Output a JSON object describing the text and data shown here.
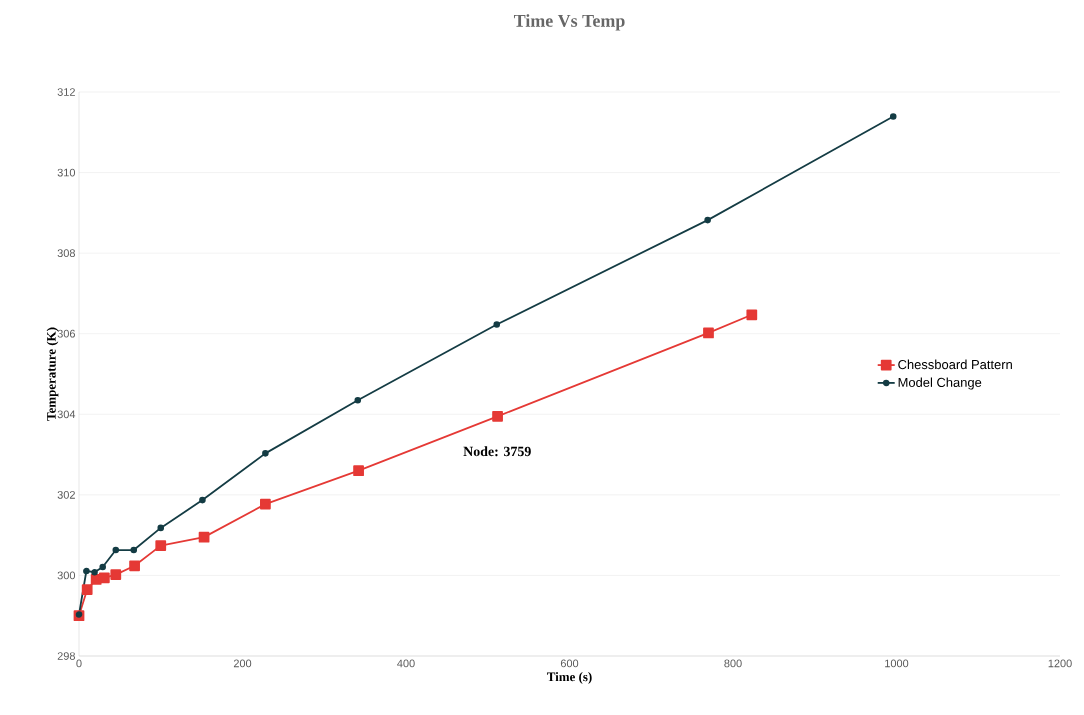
{
  "chart_data": {
    "type": "line",
    "title": "Time Vs Temp",
    "xlabel": "Time (s)",
    "ylabel": "Temperature (K)",
    "annotations": [
      "Node: 3759"
    ],
    "xlim": [
      0,
      1200
    ],
    "xticks": [
      0,
      200,
      400,
      600,
      800,
      1000,
      1200
    ],
    "ylim": [
      298,
      312
    ],
    "yticks": [
      298,
      300,
      302,
      304,
      306,
      308,
      310,
      312
    ],
    "grid": "y",
    "legend": "right",
    "series": [
      {
        "name": "Chessboard Pattern",
        "color": "#e53935",
        "marker": "square",
        "x": [
          0,
          10,
          21,
          31,
          45,
          68,
          100,
          153,
          228,
          342,
          512,
          770,
          823
        ],
        "values": [
          299.0,
          299.65,
          299.9,
          299.94,
          300.02,
          300.24,
          300.74,
          300.95,
          301.77,
          302.6,
          303.95,
          306.02,
          306.47
        ]
      },
      {
        "name": "Model Change",
        "color": "#143c44",
        "marker": "circle",
        "x": [
          0,
          9,
          19,
          29,
          45,
          67,
          100,
          151,
          228,
          341,
          511,
          769,
          996
        ],
        "values": [
          299.03,
          300.11,
          300.08,
          300.21,
          300.63,
          300.63,
          301.18,
          301.87,
          303.03,
          304.35,
          306.23,
          308.82,
          311.39
        ]
      }
    ]
  }
}
